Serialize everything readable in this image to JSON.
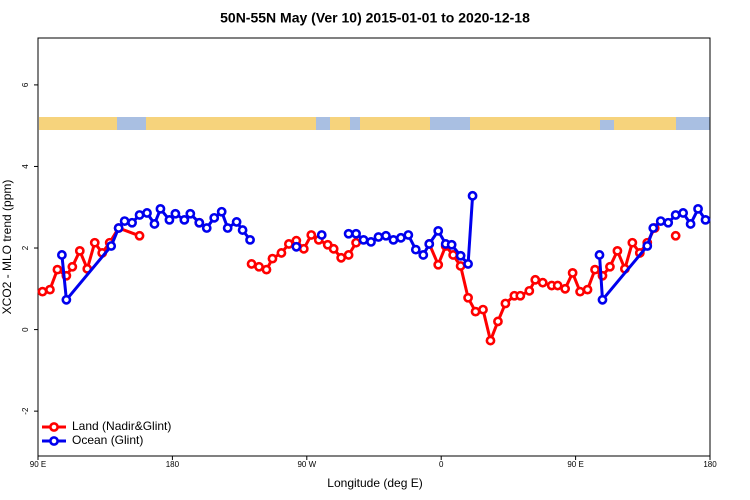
{
  "chart_data": {
    "type": "line",
    "title": "50N-55N May (Ver 10)   2015-01-01 to 2020-12-18",
    "xlabel": "Longitude (deg E)",
    "ylabel": "XCO2 - MLO trend (ppm)",
    "xlim": [
      90,
      540
    ],
    "ylim": [
      -3.1,
      7.15
    ],
    "xticks": [
      {
        "value": 90,
        "label": "90 E"
      },
      {
        "value": 180,
        "label": "180"
      },
      {
        "value": 270,
        "label": "90 W"
      },
      {
        "value": 360,
        "label": "0"
      },
      {
        "value": 450,
        "label": "90 E"
      },
      {
        "value": 540,
        "label": "180"
      }
    ],
    "yticks": [
      -2,
      0,
      2,
      4,
      6
    ],
    "legend": "bottom-left",
    "series": [
      {
        "name": "Land (Nadir&Glint)",
        "color": "#ff0000",
        "x": [
          93,
          98,
          103,
          109,
          113,
          118,
          123,
          128,
          133,
          138,
          144,
          158,
          null,
          198,
          null,
          233,
          238,
          243,
          247,
          253,
          258,
          263,
          268,
          273,
          278,
          284,
          288,
          293,
          298,
          303,
          null,
          352,
          358,
          363,
          368,
          373,
          378,
          383,
          388,
          393,
          398,
          403,
          409,
          413,
          419,
          423,
          428,
          434,
          438,
          443,
          448,
          453,
          458,
          463,
          468,
          473,
          478,
          483,
          488,
          493,
          498,
          503,
          null,
          517
        ],
        "values": [
          0.93,
          0.98,
          1.47,
          1.32,
          1.54,
          1.93,
          1.49,
          2.13,
          1.88,
          2.13,
          2.49,
          2.3,
          null,
          2.62,
          null,
          1.61,
          1.54,
          1.47,
          1.74,
          1.88,
          2.1,
          2.18,
          1.98,
          2.32,
          2.2,
          2.08,
          1.98,
          1.76,
          1.83,
          2.13,
          null,
          2.1,
          1.59,
          2.05,
          1.83,
          1.56,
          0.78,
          0.44,
          0.49,
          -0.27,
          0.2,
          0.64,
          0.83,
          0.83,
          0.95,
          1.22,
          1.15,
          1.08,
          1.08,
          1.0,
          1.39,
          0.93,
          0.98,
          1.47,
          1.32,
          1.54,
          1.93,
          1.49,
          2.13,
          1.88,
          2.13,
          2.49,
          null,
          2.3
        ]
      },
      {
        "name": "Ocean (Glint)",
        "color": "#0000ee",
        "x": [
          106,
          109,
          139,
          144,
          148,
          153,
          158,
          163,
          168,
          172,
          178,
          182,
          188,
          192,
          198,
          203,
          208,
          213,
          217,
          223,
          227,
          232,
          null,
          263,
          null,
          280,
          null,
          298,
          303,
          308,
          313,
          318,
          323,
          328,
          333,
          338,
          343,
          348,
          352,
          358,
          363,
          367,
          373,
          378,
          381,
          null,
          466,
          468,
          498,
          502,
          507,
          512,
          517,
          522,
          527,
          532,
          537
        ],
        "values": [
          1.83,
          0.73,
          2.05,
          2.49,
          2.66,
          2.62,
          2.81,
          2.86,
          2.59,
          2.96,
          2.69,
          2.84,
          2.69,
          2.84,
          2.62,
          2.49,
          2.74,
          2.89,
          2.49,
          2.64,
          2.44,
          2.2,
          null,
          2.03,
          null,
          2.32,
          null,
          2.35,
          2.35,
          2.2,
          2.15,
          2.27,
          2.3,
          2.2,
          2.25,
          2.32,
          1.96,
          1.83,
          2.1,
          2.42,
          2.1,
          2.08,
          1.81,
          1.61,
          3.28,
          null,
          1.83,
          0.73,
          2.05,
          2.49,
          2.66,
          2.62,
          2.81,
          2.86,
          2.59,
          2.96,
          2.69
        ]
      }
    ]
  }
}
